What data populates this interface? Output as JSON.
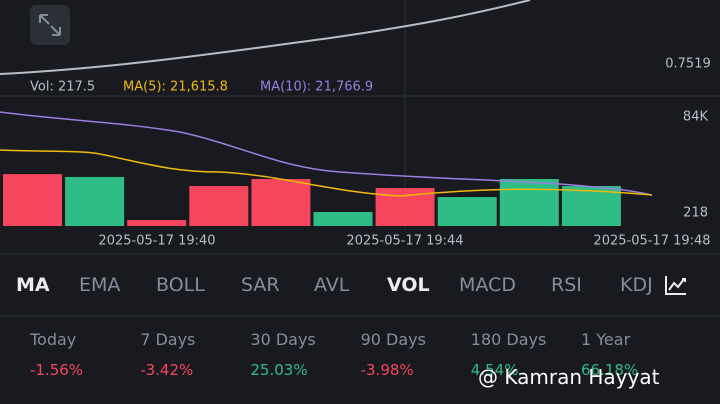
{
  "chart_panel": {
    "price_label": "0.7519",
    "indicator_legend": {
      "vol": "Vol: 217.5",
      "ma5": "MA(5): 21,615.8",
      "ma10": "MA(10): 21,766.9"
    },
    "volume": {
      "type": "bar",
      "values": [
        40000,
        37800,
        4600,
        30800,
        36200,
        10800,
        29300,
        22300,
        36200,
        30800
      ],
      "colors": [
        "#f6465d",
        "#2ebd85",
        "#f6465d",
        "#f6465d",
        "#f6465d",
        "#2ebd85",
        "#f6465d",
        "#2ebd85",
        "#2ebd85",
        "#2ebd85"
      ],
      "ylim": [
        0,
        84000
      ],
      "yticks": [
        {
          "value": 84000,
          "label": "84K"
        },
        218
      ]
    },
    "time_labels": [
      "2025-05-17 19:40",
      "2025-05-17 19:44",
      "2025-05-17 19:48"
    ]
  },
  "tabs": [
    "MA",
    "EMA",
    "BOLL",
    "SAR",
    "AVL",
    "VOL",
    "MACD",
    "RSI",
    "KDJ"
  ],
  "performance": [
    {
      "period": "Today",
      "change": "-1.56%"
    },
    {
      "period": "7 Days",
      "change": "-3.42%"
    },
    {
      "period": "30 Days",
      "change": "25.03%"
    },
    {
      "period": "90 Days",
      "change": "-3.98%"
    },
    {
      "period": "180 Days",
      "change": "4.54%"
    },
    {
      "period": "1 Year",
      "change": "66.18%"
    }
  ],
  "watermark": "@ Kamran Hayyat"
}
